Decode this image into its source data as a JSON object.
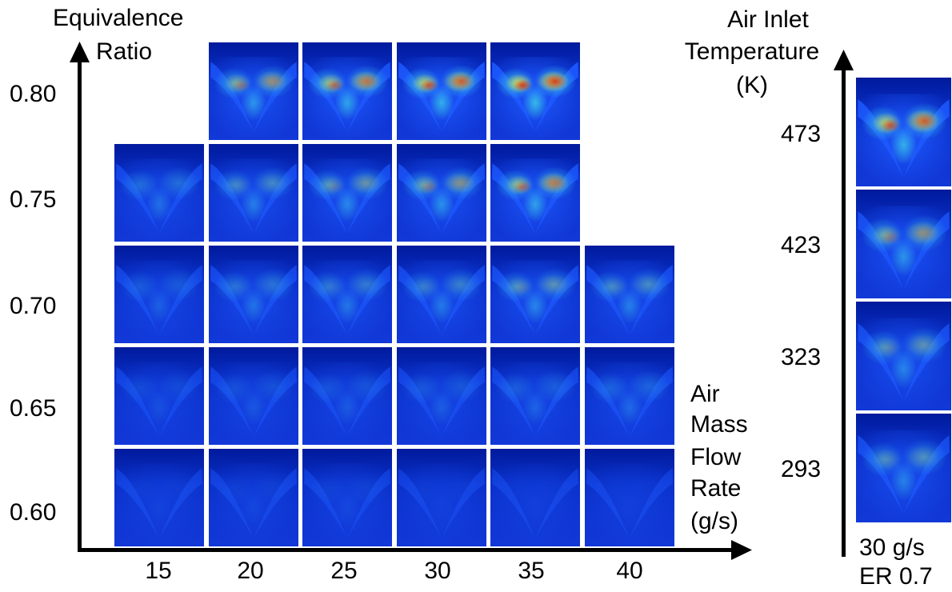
{
  "left_panel": {
    "y_axis_title_line1": "Equivalence",
    "y_axis_title_line2": "Ratio",
    "y_ticks": [
      "0.80",
      "0.75",
      "0.70",
      "0.65",
      "0.60"
    ],
    "x_ticks": [
      "15",
      "20",
      "25",
      "30",
      "35",
      "40"
    ],
    "x_axis_title_lines": [
      "Air",
      "Mass",
      "Flow",
      "Rate",
      "(g/s)"
    ],
    "grid": [
      {
        "equivalence_ratio": "0.80",
        "flow_rates": [
          "20",
          "25",
          "30",
          "35"
        ],
        "intensity": [
          0.62,
          0.72,
          0.8,
          0.88
        ]
      },
      {
        "equivalence_ratio": "0.75",
        "flow_rates": [
          "15",
          "20",
          "25",
          "30",
          "35"
        ],
        "intensity": [
          0.36,
          0.45,
          0.52,
          0.58,
          0.7
        ]
      },
      {
        "equivalence_ratio": "0.70",
        "flow_rates": [
          "15",
          "20",
          "25",
          "30",
          "35",
          "40"
        ],
        "intensity": [
          0.26,
          0.38,
          0.4,
          0.42,
          0.5,
          0.46
        ]
      },
      {
        "equivalence_ratio": "0.65",
        "flow_rates": [
          "15",
          "20",
          "25",
          "30",
          "35",
          "40"
        ],
        "intensity": [
          0.16,
          0.2,
          0.22,
          0.24,
          0.28,
          0.32
        ]
      },
      {
        "equivalence_ratio": "0.60",
        "flow_rates": [
          "15",
          "20",
          "25",
          "30",
          "35",
          "40"
        ],
        "intensity": [
          0.08,
          0.1,
          0.11,
          0.07,
          0.06,
          0.06
        ]
      }
    ]
  },
  "right_panel": {
    "axis_title_lines": [
      "Air Inlet",
      "Temperature",
      "(K)"
    ],
    "temperatures": [
      "473",
      "423",
      "323",
      "293"
    ],
    "intensity": [
      0.8,
      0.6,
      0.5,
      0.48
    ],
    "condition_line1": "30 g/s",
    "condition_line2": "ER 0.7"
  },
  "colors": {
    "background": "#001a9c",
    "low": "#1e5aff",
    "mid": "#39c8e6",
    "high": "#f0e040",
    "peak": "#d62a10"
  }
}
